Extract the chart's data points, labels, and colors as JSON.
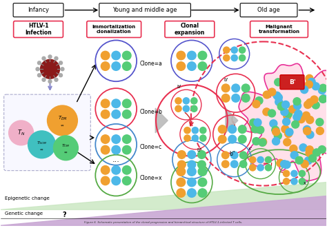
{
  "bg_color": "#ffffff",
  "stage_labels": [
    "Infancy",
    "Young and middle age",
    "Old age"
  ],
  "box_labels": [
    "HTLV-1\nInfection",
    "Immortalization\nclonalization",
    "Clonal\nexpansion",
    "Malignant\ntransformation"
  ],
  "clone_labels": [
    "Clone=a",
    "Clone=b",
    "Clone=c",
    "Clone=x"
  ],
  "epigenetic_color": "#c8e6c0",
  "genetic_color": "#c9a8d4",
  "cell_orange": "#f0a030",
  "cell_blue": "#4db8e8",
  "cell_green": "#55cc77",
  "border_blue": "#5555cc",
  "border_red": "#e83050",
  "border_cyan": "#4488cc",
  "border_green": "#55aa44",
  "caption": "Figure 6  Schematic presentation of the clonal progression and hierarchical structure of HTLV-1-infected T cells."
}
